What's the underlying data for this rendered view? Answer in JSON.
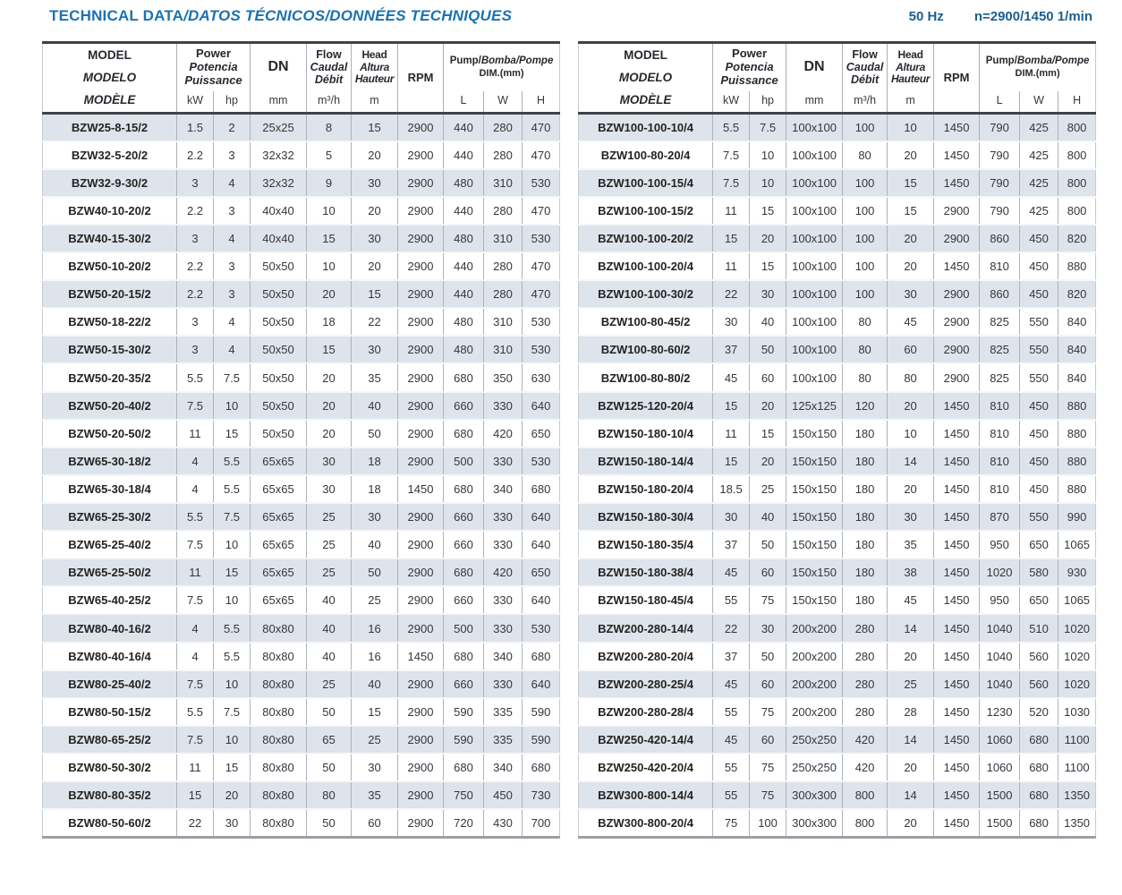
{
  "page": {
    "title_plain": "TECHNICAL DATA",
    "title_italic": "/DATOS TÉCNICOS/DONNÉES TECHNIQUES",
    "frequency": "50 Hz",
    "speed": "n=2900/1450 1/min"
  },
  "colors": {
    "title_blue": "#1b72b0",
    "freq_blue": "#1b5f8e",
    "row_shade": "#dee4eb",
    "dark_rule": "#3f4347"
  },
  "header": {
    "model": {
      "l1": "MODEL",
      "l2": "MODELO",
      "l3": "MODÈLE"
    },
    "power": {
      "l1": "Power",
      "l2": "Potencia",
      "l3": "Puissance"
    },
    "flow": {
      "l1": "Flow",
      "l2": "Caudal",
      "l3": "Débit"
    },
    "head": {
      "l1": "Head",
      "l2": "Altura",
      "l3": "Hauteur"
    },
    "dn": "DN",
    "rpm": "RPM",
    "pump": {
      "line1_a": "Pump/",
      "line1_b": "Bomba/Pompe",
      "line2": "DIM.(mm)"
    },
    "units": {
      "kw": "kW",
      "hp": "hp",
      "mm": "mm",
      "flow": "m³/h",
      "head": "m"
    },
    "dims": {
      "l": "L",
      "w": "W",
      "h": "H"
    }
  },
  "tables": {
    "left": {
      "rows": [
        [
          "BZW25-8-15/2",
          "1.5",
          "2",
          "25x25",
          "8",
          "15",
          "2900",
          "440",
          "280",
          "470"
        ],
        [
          "BZW32-5-20/2",
          "2.2",
          "3",
          "32x32",
          "5",
          "20",
          "2900",
          "440",
          "280",
          "470"
        ],
        [
          "BZW32-9-30/2",
          "3",
          "4",
          "32x32",
          "9",
          "30",
          "2900",
          "480",
          "310",
          "530"
        ],
        [
          "BZW40-10-20/2",
          "2.2",
          "3",
          "40x40",
          "10",
          "20",
          "2900",
          "440",
          "280",
          "470"
        ],
        [
          "BZW40-15-30/2",
          "3",
          "4",
          "40x40",
          "15",
          "30",
          "2900",
          "480",
          "310",
          "530"
        ],
        [
          "BZW50-10-20/2",
          "2.2",
          "3",
          "50x50",
          "10",
          "20",
          "2900",
          "440",
          "280",
          "470"
        ],
        [
          "BZW50-20-15/2",
          "2.2",
          "3",
          "50x50",
          "20",
          "15",
          "2900",
          "440",
          "280",
          "470"
        ],
        [
          "BZW50-18-22/2",
          "3",
          "4",
          "50x50",
          "18",
          "22",
          "2900",
          "480",
          "310",
          "530"
        ],
        [
          "BZW50-15-30/2",
          "3",
          "4",
          "50x50",
          "15",
          "30",
          "2900",
          "480",
          "310",
          "530"
        ],
        [
          "BZW50-20-35/2",
          "5.5",
          "7.5",
          "50x50",
          "20",
          "35",
          "2900",
          "680",
          "350",
          "630"
        ],
        [
          "BZW50-20-40/2",
          "7.5",
          "10",
          "50x50",
          "20",
          "40",
          "2900",
          "660",
          "330",
          "640"
        ],
        [
          "BZW50-20-50/2",
          "11",
          "15",
          "50x50",
          "20",
          "50",
          "2900",
          "680",
          "420",
          "650"
        ],
        [
          "BZW65-30-18/2",
          "4",
          "5.5",
          "65x65",
          "30",
          "18",
          "2900",
          "500",
          "330",
          "530"
        ],
        [
          "BZW65-30-18/4",
          "4",
          "5.5",
          "65x65",
          "30",
          "18",
          "1450",
          "680",
          "340",
          "680"
        ],
        [
          "BZW65-25-30/2",
          "5.5",
          "7.5",
          "65x65",
          "25",
          "30",
          "2900",
          "660",
          "330",
          "640"
        ],
        [
          "BZW65-25-40/2",
          "7.5",
          "10",
          "65x65",
          "25",
          "40",
          "2900",
          "660",
          "330",
          "640"
        ],
        [
          "BZW65-25-50/2",
          "11",
          "15",
          "65x65",
          "25",
          "50",
          "2900",
          "680",
          "420",
          "650"
        ],
        [
          "BZW65-40-25/2",
          "7.5",
          "10",
          "65x65",
          "40",
          "25",
          "2900",
          "660",
          "330",
          "640"
        ],
        [
          "BZW80-40-16/2",
          "4",
          "5.5",
          "80x80",
          "40",
          "16",
          "2900",
          "500",
          "330",
          "530"
        ],
        [
          "BZW80-40-16/4",
          "4",
          "5.5",
          "80x80",
          "40",
          "16",
          "1450",
          "680",
          "340",
          "680"
        ],
        [
          "BZW80-25-40/2",
          "7.5",
          "10",
          "80x80",
          "25",
          "40",
          "2900",
          "660",
          "330",
          "640"
        ],
        [
          "BZW80-50-15/2",
          "5.5",
          "7.5",
          "80x80",
          "50",
          "15",
          "2900",
          "590",
          "335",
          "590"
        ],
        [
          "BZW80-65-25/2",
          "7.5",
          "10",
          "80x80",
          "65",
          "25",
          "2900",
          "590",
          "335",
          "590"
        ],
        [
          "BZW80-50-30/2",
          "11",
          "15",
          "80x80",
          "50",
          "30",
          "2900",
          "680",
          "340",
          "680"
        ],
        [
          "BZW80-80-35/2",
          "15",
          "20",
          "80x80",
          "80",
          "35",
          "2900",
          "750",
          "450",
          "730"
        ],
        [
          "BZW80-50-60/2",
          "22",
          "30",
          "80x80",
          "50",
          "60",
          "2900",
          "720",
          "430",
          "700"
        ]
      ]
    },
    "right": {
      "rows": [
        [
          "BZW100-100-10/4",
          "5.5",
          "7.5",
          "100x100",
          "100",
          "10",
          "1450",
          "790",
          "425",
          "800"
        ],
        [
          "BZW100-80-20/4",
          "7.5",
          "10",
          "100x100",
          "80",
          "20",
          "1450",
          "790",
          "425",
          "800"
        ],
        [
          "BZW100-100-15/4",
          "7.5",
          "10",
          "100x100",
          "100",
          "15",
          "1450",
          "790",
          "425",
          "800"
        ],
        [
          "BZW100-100-15/2",
          "11",
          "15",
          "100x100",
          "100",
          "15",
          "2900",
          "790",
          "425",
          "800"
        ],
        [
          "BZW100-100-20/2",
          "15",
          "20",
          "100x100",
          "100",
          "20",
          "2900",
          "860",
          "450",
          "820"
        ],
        [
          "BZW100-100-20/4",
          "11",
          "15",
          "100x100",
          "100",
          "20",
          "1450",
          "810",
          "450",
          "880"
        ],
        [
          "BZW100-100-30/2",
          "22",
          "30",
          "100x100",
          "100",
          "30",
          "2900",
          "860",
          "450",
          "820"
        ],
        [
          "BZW100-80-45/2",
          "30",
          "40",
          "100x100",
          "80",
          "45",
          "2900",
          "825",
          "550",
          "840"
        ],
        [
          "BZW100-80-60/2",
          "37",
          "50",
          "100x100",
          "80",
          "60",
          "2900",
          "825",
          "550",
          "840"
        ],
        [
          "BZW100-80-80/2",
          "45",
          "60",
          "100x100",
          "80",
          "80",
          "2900",
          "825",
          "550",
          "840"
        ],
        [
          "BZW125-120-20/4",
          "15",
          "20",
          "125x125",
          "120",
          "20",
          "1450",
          "810",
          "450",
          "880"
        ],
        [
          "BZW150-180-10/4",
          "11",
          "15",
          "150x150",
          "180",
          "10",
          "1450",
          "810",
          "450",
          "880"
        ],
        [
          "BZW150-180-14/4",
          "15",
          "20",
          "150x150",
          "180",
          "14",
          "1450",
          "810",
          "450",
          "880"
        ],
        [
          "BZW150-180-20/4",
          "18.5",
          "25",
          "150x150",
          "180",
          "20",
          "1450",
          "810",
          "450",
          "880"
        ],
        [
          "BZW150-180-30/4",
          "30",
          "40",
          "150x150",
          "180",
          "30",
          "1450",
          "870",
          "550",
          "990"
        ],
        [
          "BZW150-180-35/4",
          "37",
          "50",
          "150x150",
          "180",
          "35",
          "1450",
          "950",
          "650",
          "1065"
        ],
        [
          "BZW150-180-38/4",
          "45",
          "60",
          "150x150",
          "180",
          "38",
          "1450",
          "1020",
          "580",
          "930"
        ],
        [
          "BZW150-180-45/4",
          "55",
          "75",
          "150x150",
          "180",
          "45",
          "1450",
          "950",
          "650",
          "1065"
        ],
        [
          "BZW200-280-14/4",
          "22",
          "30",
          "200x200",
          "280",
          "14",
          "1450",
          "1040",
          "510",
          "1020"
        ],
        [
          "BZW200-280-20/4",
          "37",
          "50",
          "200x200",
          "280",
          "20",
          "1450",
          "1040",
          "560",
          "1020"
        ],
        [
          "BZW200-280-25/4",
          "45",
          "60",
          "200x200",
          "280",
          "25",
          "1450",
          "1040",
          "560",
          "1020"
        ],
        [
          "BZW200-280-28/4",
          "55",
          "75",
          "200x200",
          "280",
          "28",
          "1450",
          "1230",
          "520",
          "1030"
        ],
        [
          "BZW250-420-14/4",
          "45",
          "60",
          "250x250",
          "420",
          "14",
          "1450",
          "1060",
          "680",
          "1100"
        ],
        [
          "BZW250-420-20/4",
          "55",
          "75",
          "250x250",
          "420",
          "20",
          "1450",
          "1060",
          "680",
          "1100"
        ],
        [
          "BZW300-800-14/4",
          "55",
          "75",
          "300x300",
          "800",
          "14",
          "1450",
          "1500",
          "680",
          "1350"
        ],
        [
          "BZW300-800-20/4",
          "75",
          "100",
          "300x300",
          "800",
          "20",
          "1450",
          "1500",
          "680",
          "1350"
        ]
      ]
    }
  }
}
